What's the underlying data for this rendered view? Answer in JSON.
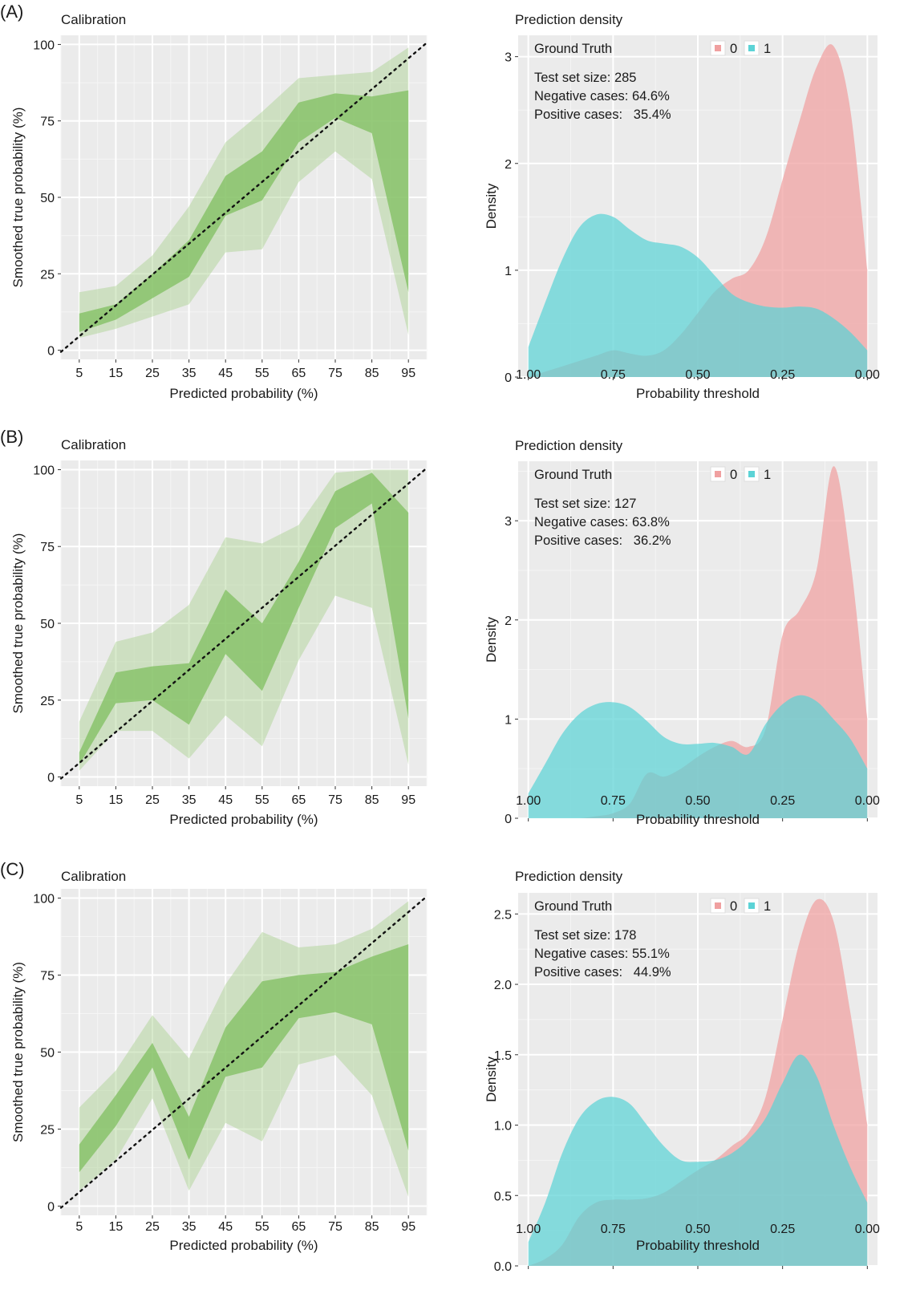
{
  "chart_data": [
    {
      "panel": "(A)",
      "calibration": {
        "type": "area",
        "title": "Calibration",
        "xlabel": "Predicted probability (%)",
        "ylabel": "Smoothed true probability (%)",
        "xlim": [
          0,
          100
        ],
        "ylim": [
          -3,
          103
        ],
        "xticks": [
          5,
          15,
          25,
          35,
          45,
          55,
          65,
          75,
          85,
          95
        ],
        "yticks": [
          0,
          25,
          50,
          75,
          100
        ],
        "diagonal": true,
        "x": [
          5,
          15,
          25,
          35,
          45,
          55,
          65,
          75,
          85,
          95
        ],
        "outer_upper": [
          19,
          21,
          31,
          47,
          68,
          78,
          89,
          90,
          91,
          99
        ],
        "outer_lower": [
          4,
          7,
          11,
          15,
          32,
          33,
          55,
          65,
          56,
          5
        ],
        "inner_upper": [
          12,
          15,
          25,
          36,
          57,
          65,
          81,
          84,
          83,
          85
        ],
        "inner_lower": [
          6,
          10,
          17,
          24,
          44,
          49,
          68,
          76,
          71,
          19
        ]
      },
      "density": {
        "type": "area",
        "title": "Prediction density",
        "xlabel": "Probability threshold",
        "ylabel": "Density",
        "x_reversed": true,
        "xlim": [
          1.0,
          0.0
        ],
        "ylim": [
          0,
          3.2
        ],
        "xticks": [
          "1.00",
          "0.75",
          "0.50",
          "0.25",
          "0.00"
        ],
        "yticks": [
          "0",
          "1",
          "2",
          "3"
        ],
        "legend_title": "Ground Truth",
        "legend": [
          "0",
          "1"
        ],
        "info": [
          "Test set size: 285",
          "Negative cases: 64.6%",
          "Positive cases:   35.4%"
        ],
        "x": [
          1.0,
          0.95,
          0.9,
          0.85,
          0.8,
          0.75,
          0.7,
          0.65,
          0.6,
          0.55,
          0.5,
          0.45,
          0.4,
          0.35,
          0.3,
          0.25,
          0.2,
          0.15,
          0.1,
          0.05,
          0.0
        ],
        "series": [
          {
            "name": "0",
            "color": "#f0a0a0",
            "values": [
              0.0,
              0.05,
              0.1,
              0.15,
              0.2,
              0.25,
              0.22,
              0.2,
              0.25,
              0.4,
              0.6,
              0.8,
              0.92,
              1.0,
              1.3,
              1.85,
              2.4,
              2.9,
              3.1,
              2.5,
              1.0
            ]
          },
          {
            "name": "1",
            "color": "#5cd3d6",
            "values": [
              0.28,
              0.7,
              1.1,
              1.4,
              1.52,
              1.5,
              1.38,
              1.28,
              1.25,
              1.22,
              1.12,
              0.95,
              0.78,
              0.7,
              0.66,
              0.65,
              0.66,
              0.64,
              0.55,
              0.42,
              0.25
            ]
          }
        ]
      }
    },
    {
      "panel": "(B)",
      "calibration": {
        "type": "area",
        "title": "Calibration",
        "xlabel": "Predicted probability (%)",
        "ylabel": "Smoothed true probability (%)",
        "xlim": [
          0,
          100
        ],
        "ylim": [
          -3,
          103
        ],
        "xticks": [
          5,
          15,
          25,
          35,
          45,
          55,
          65,
          75,
          85,
          95
        ],
        "yticks": [
          0,
          25,
          50,
          75,
          100
        ],
        "diagonal": true,
        "x": [
          5,
          15,
          25,
          35,
          45,
          55,
          65,
          75,
          85,
          95
        ],
        "outer_upper": [
          18,
          44,
          47,
          56,
          78,
          76,
          82,
          99,
          100,
          100
        ],
        "outer_lower": [
          2,
          15,
          15,
          6,
          20,
          10,
          38,
          59,
          55,
          4
        ],
        "inner_upper": [
          8,
          34,
          36,
          37,
          61,
          50,
          70,
          93,
          99,
          86
        ],
        "inner_lower": [
          4,
          24,
          25,
          17,
          40,
          28,
          55,
          81,
          89,
          19
        ]
      },
      "density": {
        "type": "area",
        "title": "Prediction density",
        "xlabel": "Probability threshold",
        "ylabel": "Density",
        "x_reversed": true,
        "xlim": [
          1.0,
          0.0
        ],
        "ylim": [
          0,
          3.6
        ],
        "xticks": [
          "1.00",
          "0.75",
          "0.50",
          "0.25",
          "0.00"
        ],
        "yticks": [
          "0",
          "1",
          "2",
          "3"
        ],
        "legend_title": "Ground Truth",
        "legend": [
          "0",
          "1"
        ],
        "info": [
          "Test set size: 127",
          "Negative cases: 63.8%",
          "Positive cases:   36.2%"
        ],
        "x": [
          1.0,
          0.95,
          0.9,
          0.85,
          0.8,
          0.75,
          0.7,
          0.65,
          0.6,
          0.55,
          0.5,
          0.45,
          0.4,
          0.35,
          0.3,
          0.25,
          0.2,
          0.15,
          0.1,
          0.05,
          0.0
        ],
        "series": [
          {
            "name": "0",
            "color": "#f0a0a0",
            "values": [
              0.0,
              0.0,
              0.0,
              0.0,
              0.02,
              0.05,
              0.15,
              0.45,
              0.42,
              0.5,
              0.62,
              0.72,
              0.78,
              0.72,
              0.9,
              1.85,
              2.1,
              2.5,
              3.55,
              2.6,
              1.0
            ]
          },
          {
            "name": "1",
            "color": "#5cd3d6",
            "values": [
              0.25,
              0.55,
              0.85,
              1.05,
              1.15,
              1.17,
              1.12,
              0.98,
              0.82,
              0.75,
              0.75,
              0.76,
              0.72,
              0.65,
              0.95,
              1.15,
              1.24,
              1.18,
              1.0,
              0.8,
              0.5
            ]
          }
        ]
      }
    },
    {
      "panel": "(C)",
      "calibration": {
        "type": "area",
        "title": "Calibration",
        "xlabel": "Predicted probability (%)",
        "ylabel": "Smoothed true probability (%)",
        "xlim": [
          0,
          100
        ],
        "ylim": [
          -3,
          103
        ],
        "xticks": [
          5,
          15,
          25,
          35,
          45,
          55,
          65,
          75,
          85,
          95
        ],
        "yticks": [
          0,
          25,
          50,
          75,
          100
        ],
        "diagonal": true,
        "x": [
          5,
          15,
          25,
          35,
          45,
          55,
          65,
          75,
          85,
          95
        ],
        "outer_upper": [
          32,
          44,
          62,
          48,
          72,
          89,
          84,
          85,
          90,
          99
        ],
        "outer_lower": [
          5,
          15,
          35,
          5,
          27,
          21,
          46,
          49,
          36,
          3
        ],
        "inner_upper": [
          20,
          36,
          53,
          29,
          58,
          73,
          75,
          76,
          81,
          85
        ],
        "inner_lower": [
          11,
          26,
          45,
          15,
          42,
          45,
          61,
          63,
          59,
          18
        ]
      },
      "density": {
        "type": "area",
        "title": "Prediction density",
        "xlabel": "Probability threshold",
        "ylabel": "Density",
        "x_reversed": true,
        "xlim": [
          1.0,
          0.0
        ],
        "ylim": [
          0,
          2.65
        ],
        "xticks": [
          "1.00",
          "0.75",
          "0.50",
          "0.25",
          "0.00"
        ],
        "yticks": [
          "0.0",
          "0.5",
          "1.0",
          "1.5",
          "2.0",
          "2.5"
        ],
        "legend_title": "Ground Truth",
        "legend": [
          "0",
          "1"
        ],
        "info": [
          "Test set size: 178",
          "Negative cases: 55.1%",
          "Positive cases:   44.9%"
        ],
        "x": [
          1.0,
          0.95,
          0.9,
          0.85,
          0.8,
          0.75,
          0.7,
          0.65,
          0.6,
          0.55,
          0.5,
          0.45,
          0.4,
          0.35,
          0.3,
          0.25,
          0.2,
          0.15,
          0.1,
          0.05,
          0.0
        ],
        "series": [
          {
            "name": "0",
            "color": "#f0a0a0",
            "values": [
              0.0,
              0.05,
              0.15,
              0.35,
              0.45,
              0.47,
              0.47,
              0.48,
              0.52,
              0.6,
              0.68,
              0.75,
              0.85,
              0.95,
              1.2,
              1.75,
              2.3,
              2.6,
              2.45,
              1.8,
              1.0
            ]
          },
          {
            "name": "1",
            "color": "#5cd3d6",
            "values": [
              0.17,
              0.45,
              0.8,
              1.05,
              1.17,
              1.2,
              1.15,
              1.0,
              0.85,
              0.75,
              0.74,
              0.75,
              0.8,
              0.9,
              1.05,
              1.3,
              1.5,
              1.35,
              1.0,
              0.7,
              0.45
            ]
          }
        ]
      }
    }
  ]
}
